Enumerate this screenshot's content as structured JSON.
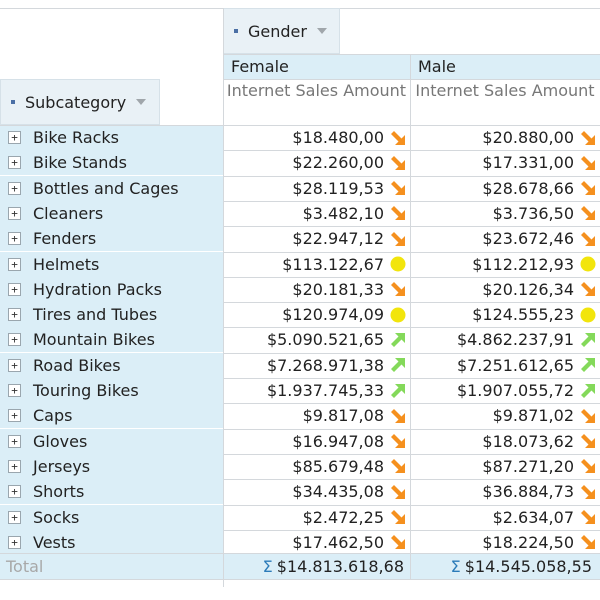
{
  "header": {
    "column_field": "Gender",
    "row_field": "Subcategory",
    "columns": [
      {
        "label": "Female",
        "measure": "Internet Sales Amount"
      },
      {
        "label": "Male",
        "measure": "Internet Sales Amount"
      }
    ]
  },
  "rows": [
    {
      "label": "Bike Racks",
      "female": "$18.480,00",
      "female_kpi": "arrow-down-right-icon",
      "male": "$20.880,00",
      "male_kpi": "arrow-down-right-icon"
    },
    {
      "label": "Bike Stands",
      "female": "$22.260,00",
      "female_kpi": "arrow-down-right-icon",
      "male": "$17.331,00",
      "male_kpi": "arrow-down-right-icon"
    },
    {
      "label": "Bottles and Cages",
      "female": "$28.119,53",
      "female_kpi": "arrow-down-right-icon",
      "male": "$28.678,66",
      "male_kpi": "arrow-down-right-icon"
    },
    {
      "label": "Cleaners",
      "female": "$3.482,10",
      "female_kpi": "arrow-down-right-icon",
      "male": "$3.736,50",
      "male_kpi": "arrow-down-right-icon"
    },
    {
      "label": "Fenders",
      "female": "$22.947,12",
      "female_kpi": "arrow-down-right-icon",
      "male": "$23.672,46",
      "male_kpi": "arrow-down-right-icon"
    },
    {
      "label": "Helmets",
      "female": "$113.122,67",
      "female_kpi": "circle-icon",
      "male": "$112.212,93",
      "male_kpi": "circle-icon"
    },
    {
      "label": "Hydration Packs",
      "female": "$20.181,33",
      "female_kpi": "arrow-down-right-icon",
      "male": "$20.126,34",
      "male_kpi": "arrow-down-right-icon"
    },
    {
      "label": "Tires and Tubes",
      "female": "$120.974,09",
      "female_kpi": "circle-icon",
      "male": "$124.555,23",
      "male_kpi": "circle-icon"
    },
    {
      "label": "Mountain Bikes",
      "female": "$5.090.521,65",
      "female_kpi": "arrow-up-right-icon",
      "male": "$4.862.237,91",
      "male_kpi": "arrow-up-right-icon"
    },
    {
      "label": "Road Bikes",
      "female": "$7.268.971,38",
      "female_kpi": "arrow-up-right-icon",
      "male": "$7.251.612,65",
      "male_kpi": "arrow-up-right-icon"
    },
    {
      "label": "Touring Bikes",
      "female": "$1.937.745,33",
      "female_kpi": "arrow-up-right-icon",
      "male": "$1.907.055,72",
      "male_kpi": "arrow-up-right-icon"
    },
    {
      "label": "Caps",
      "female": "$9.817,08",
      "female_kpi": "arrow-down-right-icon",
      "male": "$9.871,02",
      "male_kpi": "arrow-down-right-icon"
    },
    {
      "label": "Gloves",
      "female": "$16.947,08",
      "female_kpi": "arrow-down-right-icon",
      "male": "$18.073,62",
      "male_kpi": "arrow-down-right-icon"
    },
    {
      "label": "Jerseys",
      "female": "$85.679,48",
      "female_kpi": "arrow-down-right-icon",
      "male": "$87.271,20",
      "male_kpi": "arrow-down-right-icon"
    },
    {
      "label": "Shorts",
      "female": "$34.435,08",
      "female_kpi": "arrow-down-right-icon",
      "male": "$36.884,73",
      "male_kpi": "arrow-down-right-icon"
    },
    {
      "label": "Socks",
      "female": "$2.472,25",
      "female_kpi": "arrow-down-right-icon",
      "male": "$2.634,07",
      "male_kpi": "arrow-down-right-icon"
    },
    {
      "label": "Vests",
      "female": "$17.462,50",
      "female_kpi": "arrow-down-right-icon",
      "male": "$18.224,50",
      "male_kpi": "arrow-down-right-icon"
    }
  ],
  "total": {
    "label": "Total",
    "sigma": "Σ",
    "female": "$14.813.618,68",
    "male": "$14.545.058,55"
  },
  "colors": {
    "kpi_down": "#f5901e",
    "kpi_up": "#84d95a",
    "kpi_neutral": "#f2e50c",
    "row_header_bg": "#dbeef7",
    "sigma": "#2b7bb9"
  }
}
